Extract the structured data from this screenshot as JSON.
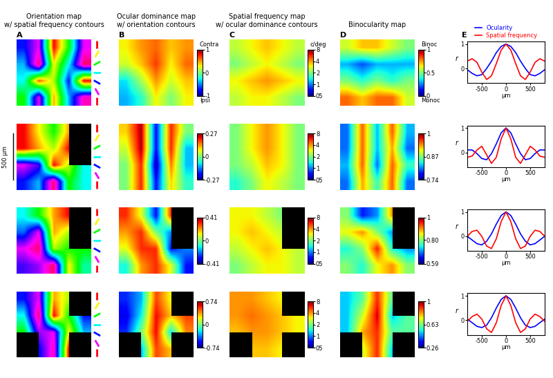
{
  "column_titles": [
    "Orientation map\nw/ spatial frequency contours",
    "Ocular dominance map\nw/ orientation contours",
    "Spatial frequency map\nw/ ocular dominance contours",
    "Binocularity map"
  ],
  "panel_labels": [
    "A",
    "B",
    "C",
    "D",
    "E"
  ],
  "scale_bar": "500 µm",
  "orientation_legend": [
    0,
    30,
    60,
    90,
    120,
    150,
    180
  ],
  "rows": [
    {
      "orientation": {
        "cells": [
          [
            120,
            150,
            0,
            60,
            150
          ],
          [
            100,
            170,
            30,
            90,
            170
          ],
          [
            90,
            10,
            40,
            120,
            0
          ],
          [
            60,
            150,
            20,
            100,
            160
          ]
        ]
      },
      "ocular_dominance": {
        "cells": [
          [
            0.3,
            0.5,
            0.6,
            0.4,
            0.5
          ],
          [
            0.2,
            0.4,
            0.7,
            0.3,
            0.6
          ],
          [
            -0.3,
            0.1,
            0.5,
            0.2,
            0.4
          ],
          [
            -0.4,
            -0.2,
            0.3,
            0.0,
            0.3
          ]
        ],
        "colorbar": {
          "range": [
            -1,
            1
          ],
          "ticks": [
            -1,
            0,
            1
          ],
          "top_label": "Contra",
          "bottom_label": "Ipsi"
        }
      },
      "spatial_frequency": {
        "cells": [
          [
            2.5,
            3,
            3.5,
            3,
            2.5
          ],
          [
            2,
            2.5,
            3,
            2.5,
            2
          ],
          [
            3,
            3.5,
            4,
            3.5,
            3
          ],
          [
            2.5,
            3,
            3,
            2.5,
            2
          ]
        ],
        "colorbar": {
          "range": [
            0.5,
            8
          ],
          "log": true,
          "ticks": [
            {
              "value": 0.5,
              "label": "05"
            },
            1,
            2,
            4,
            8
          ],
          "top_label": "c/deg"
        }
      },
      "binocularity": {
        "cells": [
          [
            0.6,
            0.7,
            0.7,
            0.6,
            0.5
          ],
          [
            0.3,
            0.2,
            0.3,
            0.3,
            0.3
          ],
          [
            0.5,
            0.4,
            0.5,
            0.4,
            0.5
          ],
          [
            0.8,
            0.7,
            0.8,
            0.8,
            0.6
          ]
        ],
        "colorbar": {
          "range": [
            0,
            1
          ],
          "ticks": [
            0,
            0.5,
            1
          ],
          "top_label": "Binoc",
          "bottom_label": "Monoc"
        }
      }
    },
    {
      "orientation": {
        "cells": [
          [
            0,
            30,
            60,
            20,
            null
          ],
          [
            0,
            20,
            40,
            0,
            null
          ],
          [
            150,
            130,
            0,
            40,
            90
          ],
          [
            120,
            100,
            170,
            60,
            90
          ]
        ]
      },
      "ocular_dominance": {
        "cells": [
          [
            0.1,
            0.25,
            -0.2,
            0.2,
            0.0
          ],
          [
            0.05,
            0.25,
            -0.2,
            0.2,
            -0.1
          ],
          [
            0.0,
            0.2,
            -0.25,
            0.15,
            -0.1
          ],
          [
            0.0,
            0.2,
            -0.2,
            0.1,
            -0.05
          ]
        ],
        "colorbar": {
          "range": [
            -0.27,
            0.27
          ],
          "ticks": [
            -0.27,
            0,
            0.27
          ]
        }
      },
      "spatial_frequency": {
        "cells": [
          [
            2,
            3,
            4,
            3,
            2
          ],
          [
            2,
            3,
            4,
            3,
            2
          ],
          [
            2,
            2.5,
            3.5,
            3,
            2
          ],
          [
            1.5,
            2,
            3,
            2.5,
            2
          ]
        ],
        "colorbar": {
          "range": [
            0.5,
            8
          ],
          "log": true,
          "ticks": [
            {
              "value": 0.5,
              "label": "05"
            },
            1,
            2,
            4,
            8
          ]
        }
      },
      "binocularity": {
        "cells": [
          [
            0.8,
            0.95,
            0.82,
            0.95,
            0.82
          ],
          [
            0.8,
            0.95,
            0.82,
            0.93,
            0.8
          ],
          [
            0.82,
            0.95,
            0.8,
            0.95,
            0.85
          ],
          [
            0.8,
            0.93,
            0.85,
            0.95,
            0.8
          ]
        ],
        "colorbar": {
          "range": [
            0.74,
            1
          ],
          "ticks": [
            0.74,
            0.87,
            1
          ]
        }
      }
    },
    {
      "orientation": {
        "cells": [
          [
            90,
            60,
            20,
            0,
            null
          ],
          [
            110,
            150,
            20,
            40,
            null
          ],
          [
            150,
            170,
            40,
            60,
            60
          ],
          [
            130,
            140,
            170,
            30,
            80
          ]
        ]
      },
      "ocular_dominance": {
        "cells": [
          [
            0.3,
            0.1,
            -0.3,
            0.3,
            null
          ],
          [
            0.2,
            0.3,
            0.0,
            -0.2,
            null
          ],
          [
            0.1,
            0.3,
            0.3,
            -0.3,
            -0.2
          ],
          [
            -0.1,
            0.2,
            0.3,
            0.1,
            -0.3
          ]
        ],
        "colorbar": {
          "range": [
            -0.41,
            0.41
          ],
          "ticks": [
            -0.41,
            0,
            0.41
          ]
        }
      },
      "spatial_frequency": {
        "cells": [
          [
            3,
            3,
            2.5,
            2,
            null
          ],
          [
            3,
            3.5,
            3,
            2.5,
            null
          ],
          [
            2.5,
            3,
            3.5,
            3,
            2.5
          ],
          [
            2,
            2.5,
            3,
            3,
            2.5
          ]
        ],
        "colorbar": {
          "range": [
            0.5,
            8
          ],
          "log": true,
          "ticks": [
            {
              "value": 0.5,
              "label": "05"
            },
            1,
            2,
            4,
            8
          ]
        }
      },
      "binocularity": {
        "cells": [
          [
            0.8,
            0.65,
            0.7,
            0.9,
            null
          ],
          [
            0.85,
            0.9,
            0.8,
            0.7,
            null
          ],
          [
            0.75,
            0.8,
            0.95,
            0.75,
            0.7
          ],
          [
            0.8,
            0.75,
            0.85,
            0.9,
            0.8
          ]
        ],
        "colorbar": {
          "range": [
            0.59,
            1
          ],
          "ticks": [
            0.59,
            {
              "value": 0.8,
              "label": "0.80"
            },
            1
          ]
        }
      }
    },
    {
      "orientation": {
        "cells": [
          [
            120,
            150,
            20,
            40,
            null
          ],
          [
            90,
            170,
            0,
            60,
            120
          ],
          [
            60,
            140,
            150,
            30,
            100
          ],
          [
            null,
            120,
            160,
            0,
            null
          ]
        ]
      },
      "ocular_dominance": {
        "cells": [
          [
            -0.5,
            -0.3,
            0.5,
            0.2,
            null
          ],
          [
            -0.6,
            -0.2,
            0.6,
            0.3,
            0.5
          ],
          [
            -0.5,
            0.0,
            0.6,
            -0.2,
            0.4
          ],
          [
            null,
            -0.3,
            0.5,
            0.3,
            null
          ]
        ],
        "colorbar": {
          "range": [
            -0.74,
            0.74
          ],
          "ticks": [
            -0.74,
            0,
            0.74
          ]
        }
      },
      "spatial_frequency": {
        "cells": [
          [
            4,
            4,
            3.5,
            3,
            null
          ],
          [
            4,
            4.5,
            4,
            3.5,
            3
          ],
          [
            3.5,
            4,
            4,
            3.5,
            3
          ],
          [
            null,
            3.5,
            3.5,
            3,
            null
          ]
        ],
        "colorbar": {
          "range": [
            0.5,
            8
          ],
          "log": true,
          "ticks": [
            {
              "value": 0.5,
              "label": "05"
            },
            1,
            2,
            4,
            8
          ]
        }
      },
      "binocularity": {
        "cells": [
          [
            0.5,
            0.6,
            0.9,
            0.6,
            null
          ],
          [
            0.5,
            0.7,
            0.95,
            0.5,
            0.6
          ],
          [
            0.5,
            0.8,
            0.9,
            0.6,
            0.6
          ],
          [
            null,
            0.7,
            0.9,
            0.5,
            null
          ]
        ],
        "colorbar": {
          "range": [
            0.26,
            1
          ],
          "ticks": [
            0.26,
            0.63,
            1
          ]
        }
      }
    }
  ],
  "chart_data": [
    {
      "type": "line",
      "x": [
        -800,
        -700,
        -600,
        -500,
        -400,
        -300,
        -200,
        -100,
        0,
        100,
        200,
        300,
        400,
        500,
        600,
        700,
        800
      ],
      "series": [
        {
          "name": "Ocularity",
          "color": "blue",
          "values": [
            -0.05,
            -0.2,
            -0.3,
            -0.25,
            0.0,
            0.3,
            0.65,
            0.9,
            1,
            0.9,
            0.65,
            0.3,
            0.0,
            -0.25,
            -0.3,
            -0.2,
            -0.05
          ]
        },
        {
          "name": "Spatial frequency",
          "color": "red",
          "values": [
            0.3,
            0.4,
            0.25,
            -0.15,
            -0.45,
            -0.3,
            0.2,
            0.75,
            1,
            0.75,
            0.2,
            -0.3,
            -0.45,
            -0.15,
            0.25,
            0.4,
            0.3
          ]
        }
      ],
      "x_label": "µm",
      "y_label": "r",
      "xlim": [
        -800,
        800
      ],
      "ylim": [
        -0.6,
        1.1
      ],
      "xticks": [
        -500,
        0,
        500
      ],
      "yticks": [
        0,
        1
      ],
      "legend": "top"
    },
    {
      "type": "line",
      "x": [
        -800,
        -700,
        -600,
        -500,
        -400,
        -300,
        -200,
        -100,
        0,
        100,
        200,
        300,
        400,
        500,
        600,
        700,
        800
      ],
      "series": [
        {
          "color": "blue",
          "values": [
            0.1,
            0.1,
            -0.05,
            -0.25,
            -0.3,
            -0.05,
            0.35,
            0.8,
            1,
            0.8,
            0.35,
            -0.05,
            -0.3,
            -0.25,
            -0.05,
            0.1,
            0.1
          ]
        },
        {
          "color": "red",
          "values": [
            -0.2,
            -0.15,
            0.1,
            0.25,
            -0.1,
            -0.45,
            -0.2,
            0.55,
            1,
            0.55,
            -0.2,
            -0.45,
            -0.1,
            0.25,
            0.1,
            -0.15,
            -0.2
          ]
        }
      ],
      "x_label": "µm",
      "y_label": "r",
      "xlim": [
        -800,
        800
      ],
      "ylim": [
        -0.6,
        1.1
      ],
      "xticks": [
        -500,
        0,
        500
      ],
      "yticks": [
        0,
        1
      ]
    },
    {
      "type": "line",
      "x": [
        -800,
        -700,
        -600,
        -500,
        -400,
        -300,
        -200,
        -100,
        0,
        100,
        200,
        300,
        400,
        500,
        600,
        700,
        800
      ],
      "series": [
        {
          "color": "blue",
          "values": [
            0.0,
            -0.15,
            -0.3,
            -0.35,
            -0.2,
            0.1,
            0.5,
            0.85,
            1,
            0.85,
            0.5,
            0.1,
            -0.2,
            -0.35,
            -0.3,
            -0.15,
            0.0
          ]
        },
        {
          "color": "red",
          "values": [
            0.0,
            0.2,
            0.25,
            0.0,
            -0.4,
            -0.5,
            -0.1,
            0.6,
            1,
            0.6,
            -0.1,
            -0.5,
            -0.4,
            0.0,
            0.25,
            0.2,
            0.0
          ]
        }
      ],
      "x_label": "µm",
      "y_label": "r",
      "xlim": [
        -800,
        800
      ],
      "ylim": [
        -0.6,
        1.1
      ],
      "xticks": [
        -500,
        0,
        500
      ],
      "yticks": [
        0,
        1
      ]
    },
    {
      "type": "line",
      "x": [
        -800,
        -700,
        -600,
        -500,
        -400,
        -300,
        -200,
        -100,
        0,
        100,
        200,
        300,
        400,
        500,
        600,
        700,
        800
      ],
      "series": [
        {
          "color": "blue",
          "values": [
            0.05,
            -0.1,
            -0.25,
            -0.3,
            -0.2,
            0.1,
            0.5,
            0.85,
            1,
            0.85,
            0.5,
            0.1,
            -0.2,
            -0.3,
            -0.25,
            -0.1,
            0.05
          ]
        },
        {
          "color": "red",
          "values": [
            -0.05,
            0.15,
            0.25,
            0.05,
            -0.35,
            -0.5,
            -0.1,
            0.6,
            1,
            0.6,
            -0.1,
            -0.5,
            -0.35,
            0.05,
            0.25,
            0.15,
            -0.05
          ]
        }
      ],
      "x_label": "µm",
      "y_label": "r",
      "xlim": [
        -800,
        800
      ],
      "ylim": [
        -0.6,
        1.1
      ],
      "xticks": [
        -500,
        0,
        500
      ],
      "yticks": [
        0,
        1
      ]
    }
  ]
}
